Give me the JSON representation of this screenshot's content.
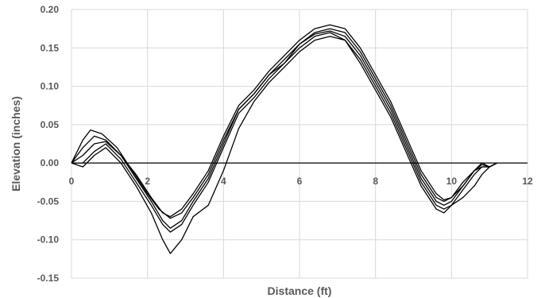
{
  "chart_data": {
    "type": "line",
    "title": "",
    "xlabel": "Distance (ft)",
    "ylabel": "Elevation (inches)",
    "xlim": [
      0,
      12
    ],
    "ylim": [
      -0.15,
      0.2
    ],
    "x_ticks": [
      "0",
      "2",
      "4",
      "6",
      "8",
      "10",
      "12"
    ],
    "y_ticks": [
      "0.20",
      "0.15",
      "0.10",
      "0.05",
      "0.00",
      "-0.05",
      "-0.10",
      "-0.15"
    ],
    "grid": true,
    "legend": "none",
    "zero_line": true,
    "series_color": "#000000",
    "grid_color": "#d9d9d9",
    "series": [
      {
        "x": [
          0,
          0.3,
          0.5,
          0.8,
          1.2,
          1.6,
          2.0,
          2.3,
          2.6,
          2.9,
          3.2,
          3.6,
          4.0,
          4.4,
          4.8,
          5.2,
          5.6,
          6.0,
          6.4,
          6.8,
          7.2,
          7.6,
          8.0,
          8.4,
          8.8,
          9.2,
          9.6,
          9.8,
          10.0,
          10.3,
          10.6,
          10.8,
          11.0,
          11.2
        ],
        "y": [
          0.0,
          0.03,
          0.043,
          0.038,
          0.02,
          -0.01,
          -0.04,
          -0.06,
          -0.072,
          -0.065,
          -0.045,
          -0.015,
          0.03,
          0.07,
          0.09,
          0.115,
          0.13,
          0.155,
          0.17,
          0.175,
          0.17,
          0.145,
          0.11,
          0.075,
          0.03,
          -0.015,
          -0.045,
          -0.05,
          -0.045,
          -0.03,
          -0.01,
          -0.005,
          -0.005,
          0.0
        ]
      },
      {
        "x": [
          0,
          0.3,
          0.6,
          0.9,
          1.3,
          1.7,
          2.1,
          2.4,
          2.6,
          2.9,
          3.2,
          3.6,
          4.0,
          4.4,
          4.8,
          5.2,
          5.6,
          6.0,
          6.4,
          6.8,
          7.2,
          7.6,
          8.0,
          8.4,
          8.8,
          9.2,
          9.6,
          9.8,
          10.0,
          10.3,
          10.6,
          10.8,
          11.0,
          11.2
        ],
        "y": [
          0.0,
          0.02,
          0.035,
          0.03,
          0.01,
          -0.015,
          -0.045,
          -0.065,
          -0.07,
          -0.06,
          -0.04,
          -0.01,
          0.035,
          0.075,
          0.095,
          0.12,
          0.14,
          0.16,
          0.175,
          0.18,
          0.175,
          0.15,
          0.115,
          0.08,
          0.035,
          -0.01,
          -0.04,
          -0.048,
          -0.045,
          -0.025,
          -0.01,
          0.0,
          -0.005,
          0.0
        ]
      },
      {
        "x": [
          0,
          0.3,
          0.6,
          0.9,
          1.3,
          1.7,
          2.1,
          2.4,
          2.6,
          2.9,
          3.2,
          3.6,
          4.0,
          4.4,
          4.8,
          5.2,
          5.6,
          6.0,
          6.4,
          6.8,
          7.2,
          7.6,
          8.0,
          8.4,
          8.8,
          9.2,
          9.6,
          9.8,
          10.0,
          10.3,
          10.6,
          10.8,
          11.0,
          11.2
        ],
        "y": [
          0.0,
          0.01,
          0.025,
          0.028,
          0.01,
          -0.02,
          -0.05,
          -0.075,
          -0.085,
          -0.075,
          -0.05,
          -0.02,
          0.025,
          0.07,
          0.09,
          0.115,
          0.135,
          0.155,
          0.168,
          0.172,
          0.165,
          0.14,
          0.105,
          0.07,
          0.025,
          -0.02,
          -0.05,
          -0.055,
          -0.05,
          -0.03,
          -0.01,
          -0.002,
          -0.005,
          0.0
        ]
      },
      {
        "x": [
          0,
          0.3,
          0.6,
          0.9,
          1.3,
          1.7,
          2.1,
          2.4,
          2.6,
          2.9,
          3.2,
          3.6,
          4.0,
          4.4,
          4.8,
          5.2,
          5.6,
          6.0,
          6.4,
          6.8,
          7.2,
          7.6,
          8.0,
          8.4,
          8.8,
          9.2,
          9.6,
          9.8,
          10.0,
          10.3,
          10.6,
          10.8,
          11.0,
          11.2
        ],
        "y": [
          0.0,
          0.0,
          0.015,
          0.025,
          0.005,
          -0.025,
          -0.055,
          -0.08,
          -0.09,
          -0.08,
          -0.055,
          -0.025,
          0.02,
          0.065,
          0.085,
          0.11,
          0.13,
          0.15,
          0.165,
          0.17,
          0.16,
          0.135,
          0.1,
          0.065,
          0.02,
          -0.025,
          -0.055,
          -0.06,
          -0.055,
          -0.035,
          -0.015,
          -0.005,
          -0.005,
          0.0
        ]
      },
      {
        "x": [
          0,
          0.3,
          0.6,
          0.9,
          1.3,
          1.7,
          2.1,
          2.4,
          2.6,
          2.9,
          3.2,
          3.6,
          4.0,
          4.4,
          4.8,
          5.2,
          5.6,
          6.0,
          6.4,
          6.8,
          7.2,
          7.6,
          8.0,
          8.4,
          8.8,
          9.2,
          9.6,
          9.8,
          10.0,
          10.3,
          10.6,
          10.8,
          11.0,
          11.2
        ],
        "y": [
          0.0,
          -0.005,
          0.01,
          0.02,
          0.0,
          -0.03,
          -0.065,
          -0.1,
          -0.118,
          -0.1,
          -0.07,
          -0.055,
          -0.01,
          0.045,
          0.08,
          0.105,
          0.125,
          0.145,
          0.16,
          0.165,
          0.16,
          0.13,
          0.095,
          0.06,
          0.015,
          -0.03,
          -0.06,
          -0.065,
          -0.055,
          -0.045,
          -0.03,
          -0.015,
          -0.005,
          0.0
        ]
      }
    ]
  }
}
